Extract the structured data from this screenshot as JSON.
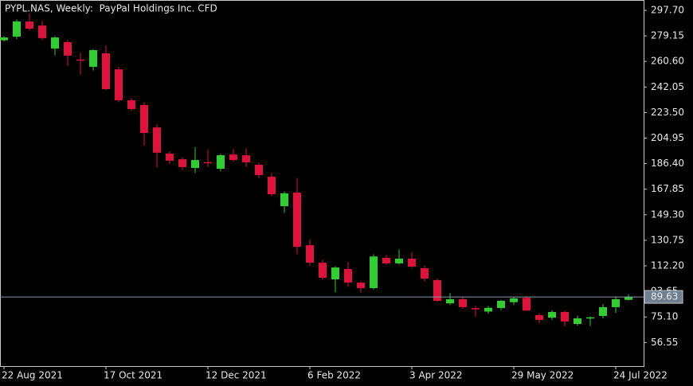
{
  "chart_data": {
    "type": "candlestick",
    "title": "PYPL.NAS, Weekly:  PayPal Holdings Inc. CFD",
    "categories": [
      "22 Aug 2021",
      null,
      null,
      null,
      null,
      null,
      null,
      null,
      "17 Oct 2021",
      null,
      null,
      null,
      null,
      null,
      null,
      null,
      "12 Dec 2021",
      null,
      null,
      null,
      null,
      null,
      null,
      null,
      "6 Feb 2022",
      null,
      null,
      null,
      null,
      null,
      null,
      null,
      "3 Apr 2022",
      null,
      null,
      null,
      null,
      null,
      null,
      null,
      "29 May 2022",
      null,
      null,
      null,
      null,
      null,
      null,
      null,
      "24 Jul 2022",
      null
    ],
    "open": [
      276,
      278.6,
      289.6,
      286.7,
      270,
      274.6,
      262,
      256.7,
      266.5,
      254.9,
      232.4,
      229,
      212.7,
      193.7,
      189.6,
      183.3,
      187.5,
      182.7,
      193,
      192.5,
      185.6,
      176.9,
      155.5,
      165.4,
      127.2,
      114.5,
      102.4,
      109.9,
      100,
      96,
      118,
      114,
      117.4,
      110.5,
      101.8,
      85,
      88,
      81.5,
      79,
      81.6,
      85.8,
      89,
      76.4,
      74.6,
      78.7,
      70,
      74.2,
      75.8,
      82.2,
      87.5
    ],
    "high": [
      279,
      291,
      295.4,
      290,
      279,
      276,
      267,
      269.5,
      272.3,
      256.6,
      234,
      231,
      215,
      195.5,
      191,
      198.3,
      196.5,
      193.5,
      197,
      197.5,
      187,
      179.8,
      166,
      176,
      131.3,
      116.5,
      112,
      115,
      101,
      120.5,
      120,
      124,
      122,
      112.5,
      103,
      92.5,
      90,
      83,
      83,
      87.5,
      89.5,
      90,
      77.5,
      80,
      79.5,
      76,
      75.5,
      84.5,
      89.5,
      91.5
    ],
    "low": [
      275,
      277,
      283,
      276,
      265,
      257.4,
      251,
      254,
      240,
      231,
      224.5,
      199.5,
      183.5,
      186,
      182,
      179.5,
      184,
      181,
      188,
      184,
      176,
      163,
      150.6,
      120.5,
      112,
      102,
      93,
      97,
      92.5,
      95,
      113,
      113,
      110.5,
      101,
      86,
      84,
      81,
      75,
      77.5,
      80,
      84,
      79.5,
      70.5,
      73,
      68.5,
      68.7,
      68.5,
      74,
      78,
      87
    ],
    "close": [
      278,
      289.6,
      284.4,
      277.5,
      278,
      264.8,
      261.5,
      268.8,
      240.5,
      232.4,
      226,
      208.7,
      194.3,
      188.5,
      183.9,
      189,
      187,
      192.5,
      189,
      187.3,
      178.1,
      164.2,
      164.8,
      126,
      114.5,
      103.5,
      111,
      100.1,
      96,
      119,
      114,
      117.4,
      111.6,
      102.9,
      86.8,
      88,
      82.2,
      81,
      81.7,
      86.8,
      88.6,
      79.7,
      72.9,
      78.7,
      71.8,
      74.1,
      74.8,
      82.2,
      88,
      89.63
    ],
    "up_color": "#32cd32",
    "down_color": "#dc143c",
    "current_price": 89.63,
    "ylim": [
      39.4,
      305.21
    ],
    "yticks": [
      {
        "value": 297.7,
        "label": "297.70"
      },
      279.15,
      {
        "value": 260.6,
        "label": "260.60"
      },
      242.05,
      {
        "value": 223.5,
        "label": "223.50"
      },
      204.95,
      {
        "value": 186.4,
        "label": "186.40"
      },
      167.85,
      {
        "value": 149.3,
        "label": "149.30"
      },
      130.75,
      {
        "value": 112.2,
        "label": "112.20"
      },
      93.65,
      {
        "value": 75.1,
        "label": "75.10"
      },
      56.55
    ]
  }
}
